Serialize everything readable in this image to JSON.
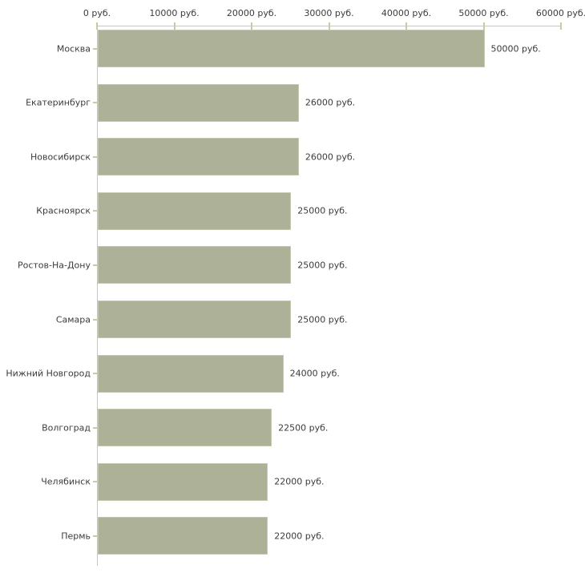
{
  "chart_data": {
    "type": "bar",
    "orientation": "horizontal",
    "title": "",
    "xlabel": "",
    "ylabel": "",
    "unit": "руб.",
    "categories": [
      "Москва",
      "Екатеринбург",
      "Новосибирск",
      "Красноярск",
      "Ростов-На-Дону",
      "Самара",
      "Нижний Новгород",
      "Волгоград",
      "Челябинск",
      "Пермь"
    ],
    "values": [
      50000,
      26000,
      26000,
      25000,
      25000,
      25000,
      24000,
      22500,
      22000,
      22000
    ],
    "value_labels": [
      "50000 руб.",
      "26000 руб.",
      "26000 руб.",
      "25000 руб.",
      "25000 руб.",
      "25000 руб.",
      "24000 руб.",
      "22500 руб.",
      "22000 руб.",
      "22000 руб."
    ],
    "x_ticks": [
      0,
      10000,
      20000,
      30000,
      40000,
      50000,
      60000
    ],
    "x_tick_labels": [
      "0 руб.",
      "10000 руб.",
      "20000 руб.",
      "30000 руб.",
      "40000 руб.",
      "50000 руб.",
      "60000 руб."
    ],
    "xlim": [
      0,
      60000
    ],
    "grid": false,
    "legend": "none",
    "colors": {
      "bar_fill": "#acb197",
      "bar_border": "#c3c8af",
      "axis_line": "#c6c6c6",
      "tick_mark": "#cdc89f",
      "text": "#3b3b3b",
      "background": "#ffffff"
    }
  }
}
